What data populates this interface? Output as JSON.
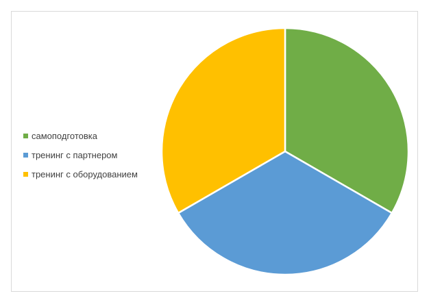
{
  "chart_data": {
    "type": "pie",
    "categories": [
      "самоподготовка",
      "тренинг с партнером",
      "тренинг с оборудованием"
    ],
    "values": [
      1,
      1,
      1
    ],
    "colors": [
      "#70ad47",
      "#5b9bd5",
      "#ffc000"
    ],
    "legend_position": "left"
  }
}
